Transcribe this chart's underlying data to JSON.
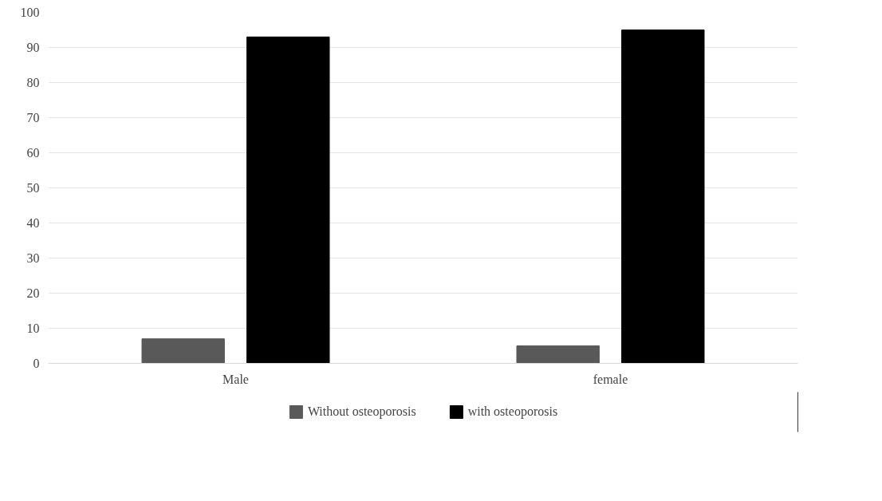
{
  "chart_data": {
    "type": "bar",
    "categories": [
      "Male",
      "female"
    ],
    "series": [
      {
        "name": "Without osteoporosis",
        "color": "#595959",
        "values": [
          7,
          5
        ]
      },
      {
        "name": "with osteoporosis",
        "color": "#000000",
        "values": [
          93,
          95
        ]
      }
    ],
    "ylim": [
      0,
      100
    ],
    "yticks": [
      0,
      10,
      20,
      30,
      40,
      50,
      60,
      70,
      80,
      90,
      100
    ],
    "grid": "y",
    "legend": "bottom"
  }
}
